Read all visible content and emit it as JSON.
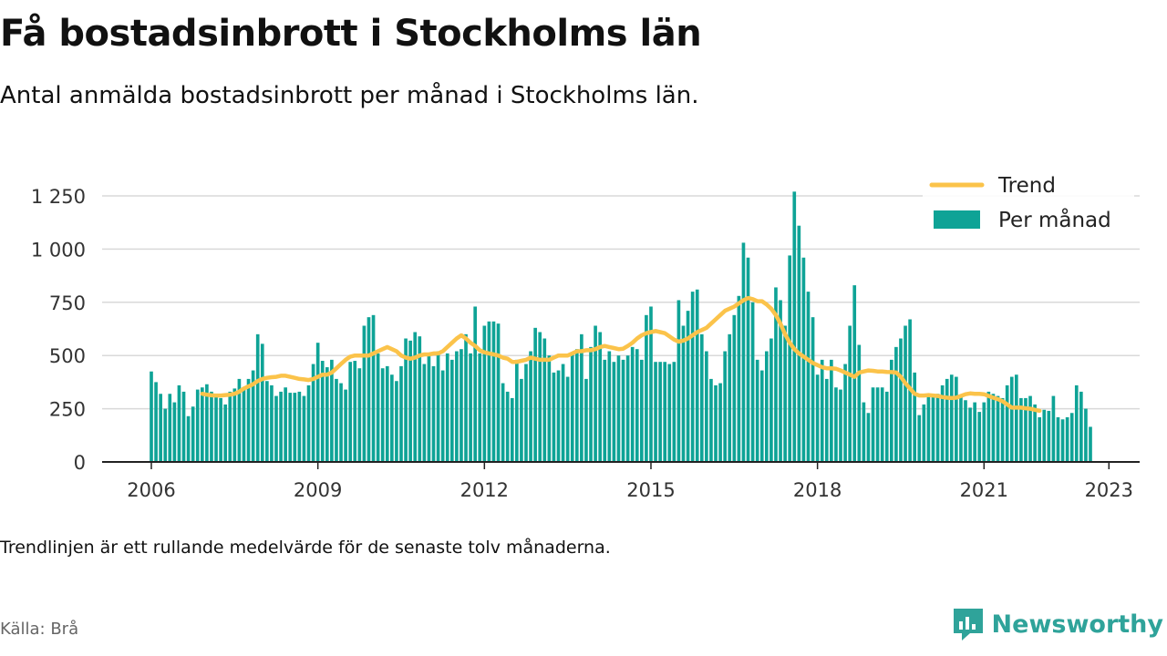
{
  "header": {
    "title": "Få bostadsinbrott i Stockholms län",
    "subtitle": "Antal anmälda bostadsinbrott per månad i Stockholms län."
  },
  "footer": {
    "note": "Trendlinjen är ett rullande medelvärde för de senaste tolv månaderna.",
    "source": "Källa: Brå",
    "brand": "Newsworthy"
  },
  "colors": {
    "bars": "#0ea396",
    "trend": "#fbc34a",
    "grid": "#d9d9d9",
    "brand": "#2fa39a"
  },
  "icons": {
    "brand_logo": "newsworthy-logo-icon"
  },
  "chart_data": {
    "type": "bar",
    "x_start": "2006-01",
    "frequency": "monthly",
    "ylim": [
      0,
      1250
    ],
    "y_ticks": [
      0,
      250,
      500,
      750,
      1000,
      1250
    ],
    "y_tick_labels": [
      "0",
      "250",
      "500",
      "750",
      "1 000",
      "1 250"
    ],
    "x_tick_labels": [
      "2006",
      "2009",
      "2012",
      "2015",
      "2018",
      "2021",
      "2023"
    ],
    "x_tick_dates": [
      "2006-01",
      "2009-01",
      "2012-01",
      "2015-01",
      "2018-01",
      "2021-01",
      "2023-04"
    ],
    "grid": true,
    "legend_position": "top-right",
    "series": [
      {
        "name": "Per månad",
        "kind": "bar",
        "values": [
          425,
          375,
          320,
          250,
          320,
          280,
          360,
          330,
          215,
          260,
          340,
          350,
          365,
          330,
          310,
          300,
          270,
          330,
          345,
          390,
          340,
          390,
          430,
          600,
          555,
          380,
          360,
          310,
          330,
          350,
          325,
          325,
          330,
          310,
          360,
          460,
          560,
          475,
          445,
          480,
          390,
          370,
          340,
          470,
          475,
          440,
          640,
          680,
          690,
          510,
          440,
          450,
          410,
          380,
          450,
          580,
          570,
          610,
          590,
          460,
          500,
          450,
          520,
          430,
          510,
          480,
          520,
          530,
          600,
          510,
          730,
          510,
          640,
          660,
          660,
          650,
          370,
          330,
          300,
          480,
          390,
          460,
          520,
          630,
          610,
          580,
          500,
          420,
          430,
          460,
          400,
          510,
          530,
          600,
          390,
          540,
          640,
          610,
          480,
          520,
          470,
          500,
          480,
          500,
          540,
          530,
          480,
          690,
          730,
          470,
          470,
          470,
          460,
          470,
          760,
          640,
          710,
          800,
          810,
          600,
          520,
          390,
          360,
          370,
          520,
          600,
          690,
          780,
          1030,
          960,
          750,
          480,
          430,
          520,
          580,
          820,
          760,
          640,
          970,
          1270,
          1110,
          960,
          800,
          680,
          410,
          480,
          390,
          480,
          350,
          340,
          460,
          640,
          830,
          550,
          280,
          230,
          350,
          350,
          350,
          330,
          480,
          540,
          580,
          640,
          670,
          420,
          220,
          270,
          320,
          320,
          320,
          360,
          390,
          410,
          400,
          310,
          290,
          255,
          280,
          235,
          280,
          330,
          320,
          310,
          300,
          360,
          400,
          410,
          300,
          300,
          310,
          270,
          210,
          245,
          240,
          310,
          210,
          200,
          210,
          230,
          360,
          330,
          250,
          165
        ],
        "color": "#0ea396"
      },
      {
        "name": "Trend",
        "kind": "line",
        "start_index": 11,
        "values": [
          320,
          316,
          313,
          312,
          312,
          314,
          316,
          320,
          330,
          345,
          355,
          365,
          380,
          390,
          395,
          398,
          400,
          405,
          405,
          400,
          395,
          390,
          388,
          385,
          390,
          400,
          410,
          410,
          420,
          440,
          460,
          480,
          495,
          500,
          500,
          500,
          500,
          510,
          520,
          530,
          540,
          530,
          520,
          500,
          490,
          485,
          490,
          500,
          505,
          505,
          510,
          510,
          520,
          540,
          560,
          580,
          595,
          580,
          560,
          545,
          525,
          515,
          510,
          505,
          500,
          490,
          485,
          470,
          470,
          475,
          480,
          490,
          485,
          480,
          480,
          480,
          490,
          500,
          500,
          500,
          510,
          520,
          520,
          525,
          525,
          530,
          540,
          545,
          540,
          535,
          530,
          532,
          545,
          560,
          580,
          595,
          605,
          610,
          615,
          610,
          605,
          590,
          575,
          565,
          570,
          580,
          595,
          610,
          620,
          630,
          650,
          670,
          690,
          710,
          720,
          730,
          745,
          760,
          770,
          765,
          755,
          755,
          740,
          720,
          690,
          650,
          600,
          560,
          530,
          510,
          495,
          480,
          465,
          455,
          445,
          440,
          440,
          438,
          430,
          420,
          410,
          400,
          420,
          425,
          430,
          428,
          425,
          425,
          423,
          422,
          420,
          400,
          370,
          345,
          320,
          312,
          312,
          314,
          312,
          310,
          305,
          302,
          300,
          302,
          310,
          318,
          322,
          320,
          320,
          318,
          310,
          302,
          295,
          285,
          270,
          255,
          255,
          255,
          252,
          250,
          245,
          240
        ]
      }
    ]
  }
}
